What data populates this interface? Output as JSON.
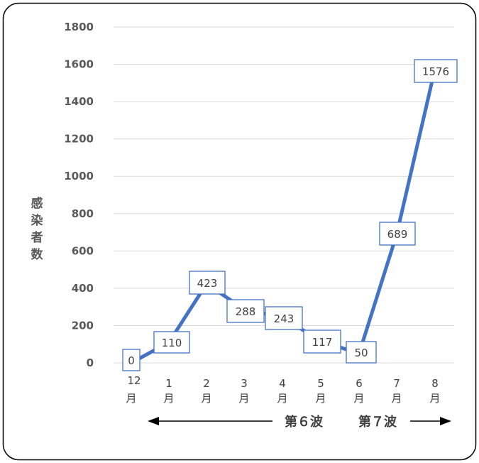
{
  "chart_data": {
    "type": "line",
    "categories": [
      [
        "12",
        "月"
      ],
      [
        "1",
        "月"
      ],
      [
        "2",
        "月"
      ],
      [
        "3",
        "月"
      ],
      [
        "4",
        "月"
      ],
      [
        "5",
        "月"
      ],
      [
        "6",
        "月"
      ],
      [
        "7",
        "月"
      ],
      [
        "8",
        "月"
      ]
    ],
    "series": [
      {
        "values": [
          0,
          110,
          423,
          288,
          243,
          117,
          50,
          689,
          1576
        ]
      }
    ],
    "ylabel": "感染者数",
    "y_ticks": [
      "0",
      "200",
      "400",
      "600",
      "800",
      "1000",
      "1200",
      "1400",
      "1600",
      "1800"
    ],
    "ylim": [
      0,
      1800
    ],
    "grid": true,
    "data_labels": [
      "0",
      "110",
      "423",
      "288",
      "243",
      "117",
      "50",
      "689",
      "1576"
    ],
    "annotations": {
      "wave6": "第６波",
      "wave7": "第７波"
    },
    "colors": {
      "line": "#4472c4",
      "grid": "#d9d9d9",
      "label_border": "#4472c4"
    }
  }
}
